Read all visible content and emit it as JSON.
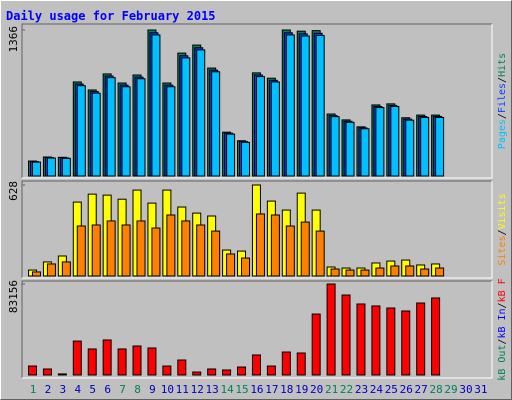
{
  "chart_data": [
    {
      "type": "bar",
      "title": "Daily usage for February 2015",
      "ylim": [
        0,
        1366
      ],
      "yticks": [
        1366
      ],
      "series": [
        {
          "name": "Hits",
          "color": "#00805c",
          "values": [
            140,
            178,
            175,
            880,
            805,
            955,
            870,
            945,
            1366,
            870,
            1150,
            1225,
            1010,
            410,
            330,
            965,
            915,
            1366,
            1355,
            1360,
            580,
            525,
            460,
            665,
            675,
            545,
            570,
            570,
            null,
            null,
            null
          ]
        },
        {
          "name": "Files",
          "color": "#0040ff",
          "values": [
            135,
            172,
            170,
            860,
            790,
            935,
            850,
            925,
            1340,
            850,
            1125,
            1200,
            990,
            400,
            322,
            945,
            895,
            1340,
            1330,
            1335,
            565,
            512,
            450,
            650,
            660,
            532,
            557,
            557,
            null,
            null,
            null
          ]
        },
        {
          "name": "Pages",
          "color": "#00c0ff",
          "values": [
            130,
            168,
            165,
            845,
            775,
            920,
            835,
            910,
            1320,
            835,
            1105,
            1180,
            975,
            392,
            315,
            930,
            880,
            1320,
            1310,
            1315,
            555,
            502,
            442,
            640,
            650,
            522,
            548,
            548,
            null,
            null,
            null
          ]
        }
      ]
    },
    {
      "type": "bar",
      "ylim": [
        0,
        628
      ],
      "yticks": [
        628
      ],
      "series": [
        {
          "name": "Visits",
          "color": "#ffff00",
          "values": [
            41,
            97,
            138,
            510,
            565,
            558,
            530,
            593,
            503,
            593,
            476,
            434,
            414,
            179,
            172,
            628,
            517,
            455,
            572,
            455,
            62,
            55,
            55,
            90,
            103,
            110,
            76,
            83,
            null,
            null,
            null
          ]
        },
        {
          "name": "Sites",
          "color": "#ff8000",
          "values": [
            28,
            83,
            97,
            345,
            352,
            380,
            352,
            380,
            331,
            421,
            380,
            352,
            310,
            152,
            124,
            428,
            421,
            345,
            372,
            310,
            48,
            41,
            41,
            55,
            69,
            69,
            48,
            55,
            null,
            null,
            null
          ]
        }
      ]
    },
    {
      "type": "bar",
      "ylim": [
        0,
        83156
      ],
      "yticks": [
        83156
      ],
      "categories": [
        "1",
        "2",
        "3",
        "4",
        "5",
        "6",
        "7",
        "8",
        "9",
        "10",
        "11",
        "12",
        "13",
        "14",
        "15",
        "16",
        "17",
        "18",
        "19",
        "20",
        "21",
        "22",
        "23",
        "24",
        "25",
        "26",
        "27",
        "28",
        "29",
        "30",
        "31"
      ],
      "category_colors": [
        "#00805c",
        "#0000c0",
        "#0000c0",
        "#0000c0",
        "#0000c0",
        "#0000c0",
        "#00805c",
        "#00805c",
        "#0000c0",
        "#0000c0",
        "#0000c0",
        "#0000c0",
        "#0000c0",
        "#00805c",
        "#00805c",
        "#0000c0",
        "#0000c0",
        "#0000c0",
        "#0000c0",
        "#0000c0",
        "#00805c",
        "#00805c",
        "#0000c0",
        "#0000c0",
        "#0000c0",
        "#0000c0",
        "#0000c0",
        "#00805c",
        "#00805c",
        "#0000c0",
        "#0000c0"
      ],
      "series": [
        {
          "name": "kB F",
          "color": "#ff0000",
          "values": [
            8200,
            5500,
            1000,
            31000,
            23800,
            32000,
            23800,
            26500,
            24700,
            8200,
            13700,
            2700,
            5500,
            4600,
            7300,
            18300,
            8200,
            21000,
            20100,
            55700,
            83156,
            73100,
            64900,
            63100,
            61200,
            58500,
            65800,
            70400,
            null,
            null,
            null
          ]
        },
        {
          "name": "kB In",
          "color": "#0000ff",
          "values": [
            null,
            null,
            null,
            null,
            null,
            null,
            null,
            null,
            null,
            null,
            null,
            null,
            null,
            null,
            null,
            null,
            null,
            null,
            null,
            null,
            null,
            null,
            null,
            null,
            null,
            null,
            null,
            null,
            null,
            null,
            null
          ]
        },
        {
          "name": "kB Out",
          "color": "#00805c",
          "values": [
            null,
            null,
            null,
            null,
            null,
            null,
            null,
            null,
            null,
            null,
            null,
            null,
            null,
            null,
            null,
            null,
            null,
            null,
            null,
            null,
            null,
            null,
            null,
            null,
            null,
            null,
            null,
            null,
            null,
            null,
            null
          ]
        }
      ]
    }
  ]
}
